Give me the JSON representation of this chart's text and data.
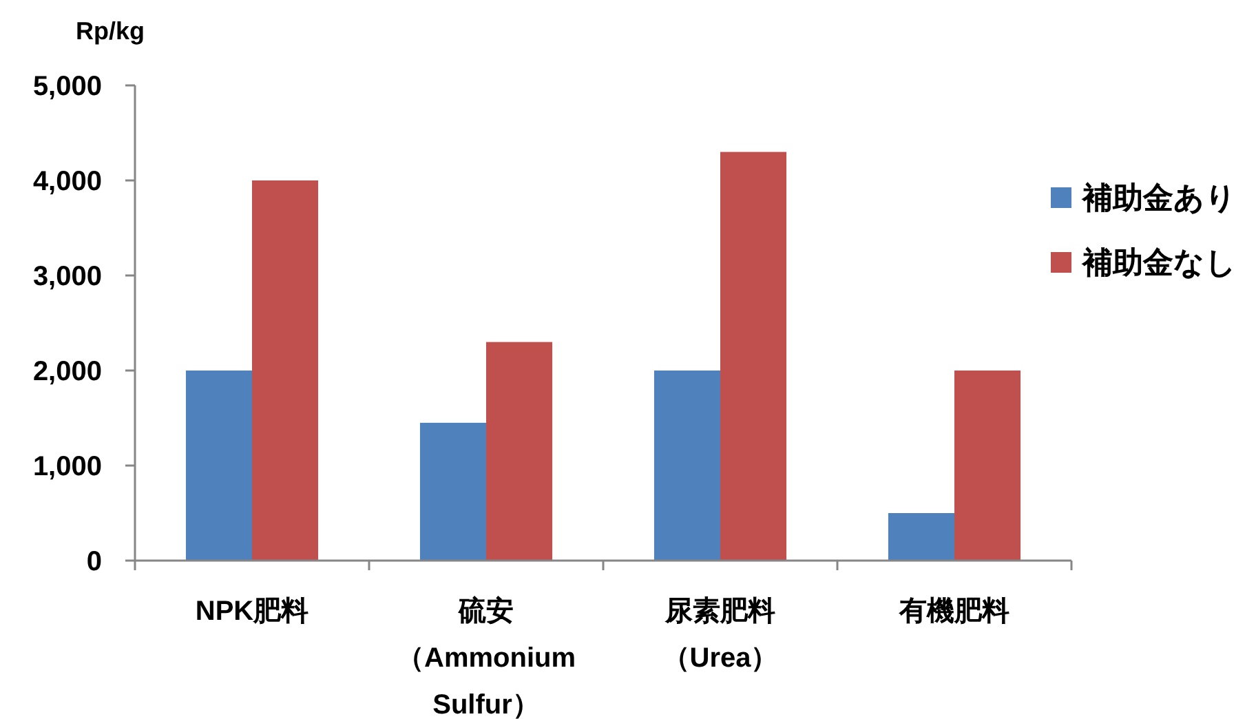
{
  "chart_data": {
    "type": "bar",
    "ylabel": "Rp/kg",
    "categories": [
      "NPK肥料",
      "硫安（Ammonium Sulfur）",
      "尿素肥料（Urea）",
      "有機肥料"
    ],
    "series": [
      {
        "name": "補助金あり",
        "color": "#4f81bd",
        "values": [
          2000,
          1450,
          2000,
          500
        ]
      },
      {
        "name": "補助金なし",
        "color": "#c0504d",
        "values": [
          4000,
          2300,
          4300,
          2000
        ]
      }
    ],
    "ylim": [
      0,
      5000
    ],
    "yticks": [
      {
        "value": 0,
        "label": "0"
      },
      {
        "value": 1000,
        "label": "1,000"
      },
      {
        "value": 2000,
        "label": "2,000"
      },
      {
        "value": 3000,
        "label": "3,000"
      },
      {
        "value": 4000,
        "label": "4,000"
      },
      {
        "value": 5000,
        "label": "5,000"
      }
    ],
    "grid": false,
    "legend": "right"
  }
}
